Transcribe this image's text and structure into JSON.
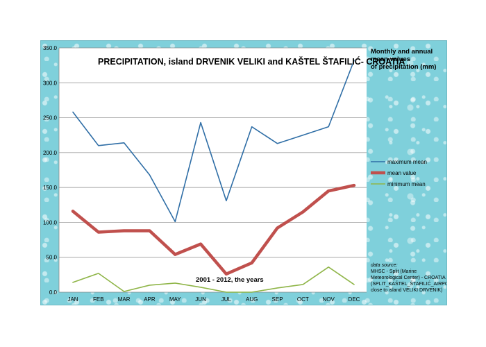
{
  "chart_data": {
    "type": "line",
    "title": "PRECIPITATION, island DRVENIK VELIKI and KAŠTEL ŠTAFILIĆ- CROATIA",
    "side_title": [
      "Monthly and annual",
      "mean values",
      "of precipitation (mm)"
    ],
    "annotation": "2001 - 2012, the years",
    "categories": [
      "JAN",
      "FEB",
      "MAR",
      "APR",
      "MAY",
      "JUN",
      "JUL",
      "AUG",
      "SEP",
      "OCT",
      "NOV",
      "DEC"
    ],
    "ylim": [
      0,
      350
    ],
    "y_ticks": [
      "0.0",
      "50.0",
      "100.0",
      "150.0",
      "200.0",
      "250.0",
      "300.0",
      "350.0"
    ],
    "series": [
      {
        "name": "maximum mean",
        "color": "#2f6ea6",
        "values": [
          258,
          210,
          214,
          168,
          101,
          243,
          131,
          237,
          213,
          225,
          237,
          332
        ]
      },
      {
        "name": "mean value",
        "color": "#c0504d",
        "values": [
          116,
          86,
          88,
          88,
          54,
          69,
          26,
          42,
          92,
          115,
          145,
          153
        ]
      },
      {
        "name": "minimum mean",
        "color": "#8fb548",
        "values": [
          14,
          27,
          1,
          10,
          13,
          7,
          0,
          0,
          6,
          11,
          36,
          11
        ]
      }
    ],
    "source": [
      "data source:",
      "MHSC - Split (Marine",
      "Meteorological Center) - CROATIA",
      "(SPLIT_KAŠTEL_ŠTAFILIĆ_AIRPORT -",
      "close to island VELIKI DRVENIK)"
    ]
  }
}
